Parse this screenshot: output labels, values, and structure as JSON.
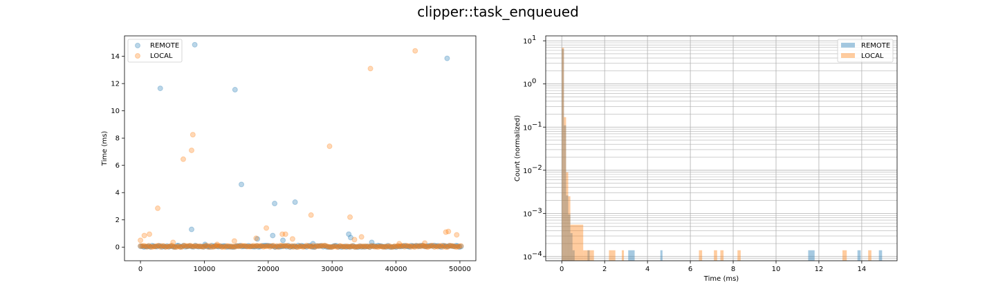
{
  "figure": {
    "title": "clipper::task_enqueued"
  },
  "colors": {
    "remote": "#1f77b4",
    "local": "#ff7f0e"
  },
  "chart_data": [
    {
      "type": "scatter",
      "xlabel": "",
      "ylabel": "Time (ms)",
      "xlim": [
        -2500,
        52500
      ],
      "ylim": [
        -1,
        15.5
      ],
      "xticks": [
        0,
        10000,
        20000,
        30000,
        40000,
        50000
      ],
      "yticks": [
        0,
        2,
        4,
        6,
        8,
        10,
        12,
        14
      ],
      "legend": {
        "position": "top-left",
        "entries": [
          "REMOTE",
          "LOCAL"
        ]
      },
      "series": [
        {
          "name": "REMOTE",
          "points": [
            [
              8500,
              14.85
            ],
            [
              3100,
              11.65
            ],
            [
              14800,
              11.55
            ],
            [
              48000,
              13.85
            ],
            [
              15800,
              4.6
            ],
            [
              21000,
              3.2
            ],
            [
              24200,
              3.3
            ],
            [
              8000,
              1.3
            ],
            [
              32600,
              0.95
            ],
            [
              32900,
              0.7
            ],
            [
              20700,
              0.85
            ],
            [
              22300,
              0.5
            ],
            [
              18300,
              0.6
            ],
            [
              36200,
              0.35
            ],
            [
              10100,
              0.2
            ],
            [
              27000,
              0.25
            ]
          ]
        },
        {
          "name": "LOCAL",
          "points": [
            [
              43000,
              14.4
            ],
            [
              36000,
              13.1
            ],
            [
              8200,
              8.25
            ],
            [
              8000,
              7.1
            ],
            [
              29600,
              7.4
            ],
            [
              6700,
              6.45
            ],
            [
              2700,
              2.85
            ],
            [
              26700,
              2.35
            ],
            [
              32800,
              2.2
            ],
            [
              19700,
              1.4
            ],
            [
              22200,
              0.95
            ],
            [
              22700,
              0.95
            ],
            [
              48200,
              1.15
            ],
            [
              47800,
              1.1
            ],
            [
              49500,
              0.9
            ],
            [
              600,
              0.85
            ],
            [
              1400,
              0.95
            ],
            [
              0,
              0.5
            ],
            [
              33500,
              0.55
            ],
            [
              34600,
              0.75
            ],
            [
              18100,
              0.65
            ],
            [
              23800,
              0.6
            ],
            [
              5100,
              0.35
            ],
            [
              14700,
              0.45
            ],
            [
              44500,
              0.3
            ],
            [
              12000,
              0.2
            ],
            [
              40500,
              0.25
            ]
          ]
        }
      ]
    },
    {
      "type": "histogram",
      "xlabel": "Time (ms)",
      "ylabel": "Count (normalized)",
      "yscale": "log",
      "xlim": [
        -0.75,
        15.65
      ],
      "ylim": [
        8e-05,
        13
      ],
      "xticks": [
        0,
        2,
        4,
        6,
        8,
        10,
        12,
        14
      ],
      "ytick_exponents": [
        -4,
        -3,
        -2,
        -1,
        0,
        1
      ],
      "grid": true,
      "legend": {
        "position": "top-right",
        "entries": [
          "REMOTE",
          "LOCAL"
        ]
      },
      "series": [
        {
          "name": "REMOTE",
          "bins": [
            [
              0.0,
              0.1,
              6.5
            ],
            [
              0.1,
              0.2,
              0.11
            ],
            [
              0.2,
              0.3,
              0.0026
            ],
            [
              0.3,
              0.4,
              0.00095
            ],
            [
              0.4,
              0.5,
              0.00035
            ],
            [
              0.5,
              0.6,
              0.00014
            ],
            [
              1.2,
              1.3,
              0.00014
            ],
            [
              3.1,
              3.4,
              0.00014
            ],
            [
              4.6,
              4.7,
              0.00014
            ],
            [
              11.5,
              11.8,
              0.00014
            ],
            [
              13.8,
              13.95,
              0.00014
            ],
            [
              14.8,
              14.95,
              0.00014
            ]
          ]
        },
        {
          "name": "LOCAL",
          "bins": [
            [
              0.0,
              0.1,
              6.9
            ],
            [
              0.1,
              0.2,
              0.17
            ],
            [
              0.2,
              0.3,
              0.009
            ],
            [
              0.3,
              0.4,
              0.0025
            ],
            [
              0.4,
              1.0,
              0.00055
            ],
            [
              1.0,
              1.5,
              0.00014
            ],
            [
              2.2,
              2.5,
              0.00014
            ],
            [
              2.8,
              2.9,
              0.00014
            ],
            [
              6.4,
              6.55,
              0.00014
            ],
            [
              7.1,
              7.25,
              0.00014
            ],
            [
              7.4,
              7.55,
              0.00014
            ],
            [
              8.2,
              8.35,
              0.00014
            ],
            [
              13.1,
              13.3,
              0.00014
            ],
            [
              14.3,
              14.45,
              0.00014
            ]
          ]
        }
      ]
    }
  ]
}
